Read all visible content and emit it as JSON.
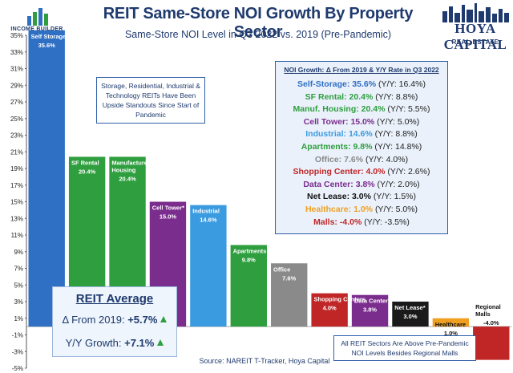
{
  "header": {
    "title": "REIT Same-Store NOI Growth By Property Sector",
    "subtitle": "Same-Store NOI Level in Q3 2022 vs. 2019 (Pre-Pandemic)",
    "logo_left_text": "INCOME BUILDER",
    "logo_right_line1": "HOYA CAPITAL",
    "logo_right_line2": "REAL ESTATE"
  },
  "notes": {
    "upside": "Storage, Residential, Industrial & Technology REITs Have Been Upside Standouts Since Start of Pandemic",
    "pre_pandemic": "All REIT Sectors Are Above Pre-Pandemic NOI Levels Besides Regional Malls",
    "source": "Source: NAREIT T-Tracker, Hoya Capital"
  },
  "legend": {
    "title": "NOI Growth: Δ From 2019 & Y/Y Rate in Q3 2022",
    "rows": [
      {
        "name": "Self-Storage:",
        "value": "35.6%",
        "yy": "(Y/Y: 16.4%)",
        "color": "#2f6fc4"
      },
      {
        "name": "SF Rental:",
        "value": "20.4%",
        "yy": "(Y/Y: 8.8%)",
        "color": "#2e9e3e"
      },
      {
        "name": "Manuf. Housing:",
        "value": "20.4%",
        "yy": "(Y/Y: 5.5%)",
        "color": "#2e9e3e"
      },
      {
        "name": "Cell Tower:",
        "value": "15.0%",
        "yy": "(Y/Y: 5.0%)",
        "color": "#7b2d8e"
      },
      {
        "name": "Industrial:",
        "value": "14.6%",
        "yy": "(Y/Y: 8.8%)",
        "color": "#3b9be0"
      },
      {
        "name": "Apartments:",
        "value": "9.8%",
        "yy": "(Y/Y: 14.8%)",
        "color": "#2e9e3e"
      },
      {
        "name": "Office:",
        "value": "7.6%",
        "yy": "(Y/Y: 4.0%)",
        "color": "#8a8a8a"
      },
      {
        "name": "Shopping Center:",
        "value": "4.0%",
        "yy": "(Y/Y: 2.6%)",
        "color": "#c02626"
      },
      {
        "name": "Data Center:",
        "value": "3.8%",
        "yy": "(Y/Y: 2.0%)",
        "color": "#7b2d8e"
      },
      {
        "name": "Net Lease:",
        "value": "3.0%",
        "yy": "(Y/Y: 1.5%)",
        "color": "#111111"
      },
      {
        "name": "Healthcare:",
        "value": "1.0%",
        "yy": "(Y/Y: 5.0%)",
        "color": "#f0a020"
      },
      {
        "name": "Malls:",
        "value": "-4.0%",
        "yy": "(Y/Y: -3.5%)",
        "color": "#c02626"
      }
    ]
  },
  "reit_average": {
    "title": "REIT Average",
    "delta_label": "Δ From 2019:",
    "delta_value": "+5.7%",
    "yy_label": "Y/Y Growth:",
    "yy_value": "+7.1%"
  },
  "chart_data": {
    "type": "bar",
    "title": "REIT Same-Store NOI Growth By Property Sector",
    "subtitle": "Same-Store NOI Level in Q3 2022 vs. 2019 (Pre-Pandemic)",
    "ylim": [
      -5,
      35
    ],
    "ytick_step": 2,
    "grid": false,
    "categories": [
      "Self Storage",
      "SF Rental",
      "Manufactured Housing",
      "Cell Tower*",
      "Industrial",
      "Apartments",
      "Office",
      "Shopping Centers",
      "Data Center*",
      "Net Lease*",
      "Healthcare",
      "Regional Malls"
    ],
    "values": [
      35.6,
      20.4,
      20.4,
      15.0,
      14.6,
      9.8,
      7.6,
      4.0,
      3.8,
      3.0,
      1.0,
      -4.0
    ],
    "value_labels": [
      "35.6%",
      "20.4%",
      "20.4%",
      "15.0%",
      "14.6%",
      "9.8%",
      "7.6%",
      "4.0%",
      "3.8%",
      "3.0%",
      "1.0%",
      "-4.0%"
    ],
    "colors": [
      "#2f6fc4",
      "#2e9e3e",
      "#2e9e3e",
      "#7b2d8e",
      "#3b9be0",
      "#2e9e3e",
      "#8a8a8a",
      "#c02626",
      "#7b2d8e",
      "#1a1a1a",
      "#f0a020",
      "#c02626"
    ]
  }
}
